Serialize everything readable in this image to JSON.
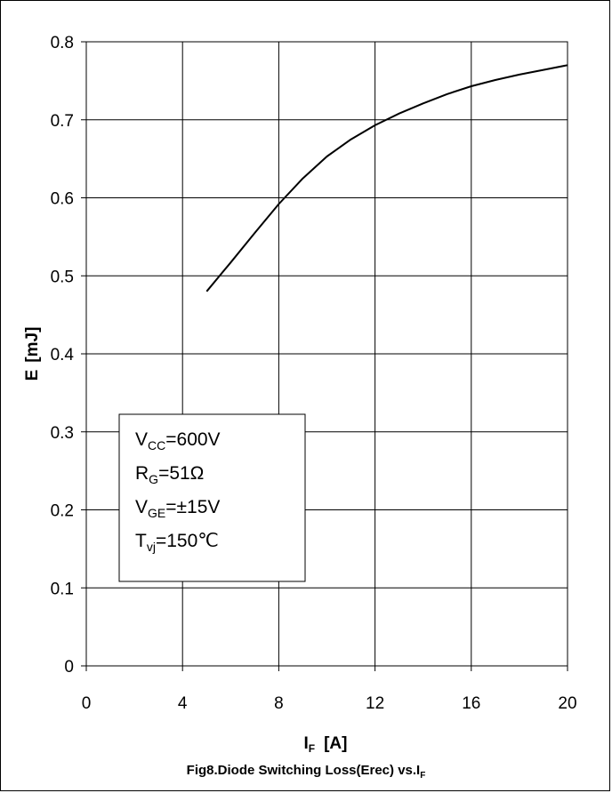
{
  "chart_data": {
    "type": "line",
    "x_label_main": "I",
    "x_label_sub": "F",
    "x_label_unit": "[A]",
    "y_label_main": "E",
    "y_label_unit": "[mJ]",
    "caption_main": "Fig8.Diode Switching Loss(Erec) vs.I",
    "caption_sub": "F",
    "xlim": [
      0,
      20
    ],
    "ylim": [
      0,
      0.8
    ],
    "x_ticks": [
      "0",
      "4",
      "8",
      "12",
      "16",
      "20"
    ],
    "y_ticks": [
      "0",
      "0.1",
      "0.2",
      "0.3",
      "0.4",
      "0.5",
      "0.6",
      "0.7",
      "0.8"
    ],
    "grid": true,
    "series": [
      {
        "x": [
          5,
          6,
          7,
          8,
          9,
          10,
          11,
          12,
          13,
          14,
          15,
          16,
          17,
          18,
          19,
          20
        ],
        "y": [
          0.48,
          0.517,
          0.555,
          0.592,
          0.625,
          0.653,
          0.675,
          0.693,
          0.708,
          0.721,
          0.733,
          0.743,
          0.751,
          0.758,
          0.764,
          0.77
        ],
        "color": "#000000"
      }
    ],
    "conditions": [
      {
        "main": "V",
        "sub": "CC",
        "rest": "=600V"
      },
      {
        "main": "R",
        "sub": "G",
        "rest": "=51Ω"
      },
      {
        "main": "V",
        "sub": "GE",
        "rest": "=±15V"
      },
      {
        "main": "T",
        "sub": "vj",
        "rest": "=150℃"
      }
    ]
  }
}
